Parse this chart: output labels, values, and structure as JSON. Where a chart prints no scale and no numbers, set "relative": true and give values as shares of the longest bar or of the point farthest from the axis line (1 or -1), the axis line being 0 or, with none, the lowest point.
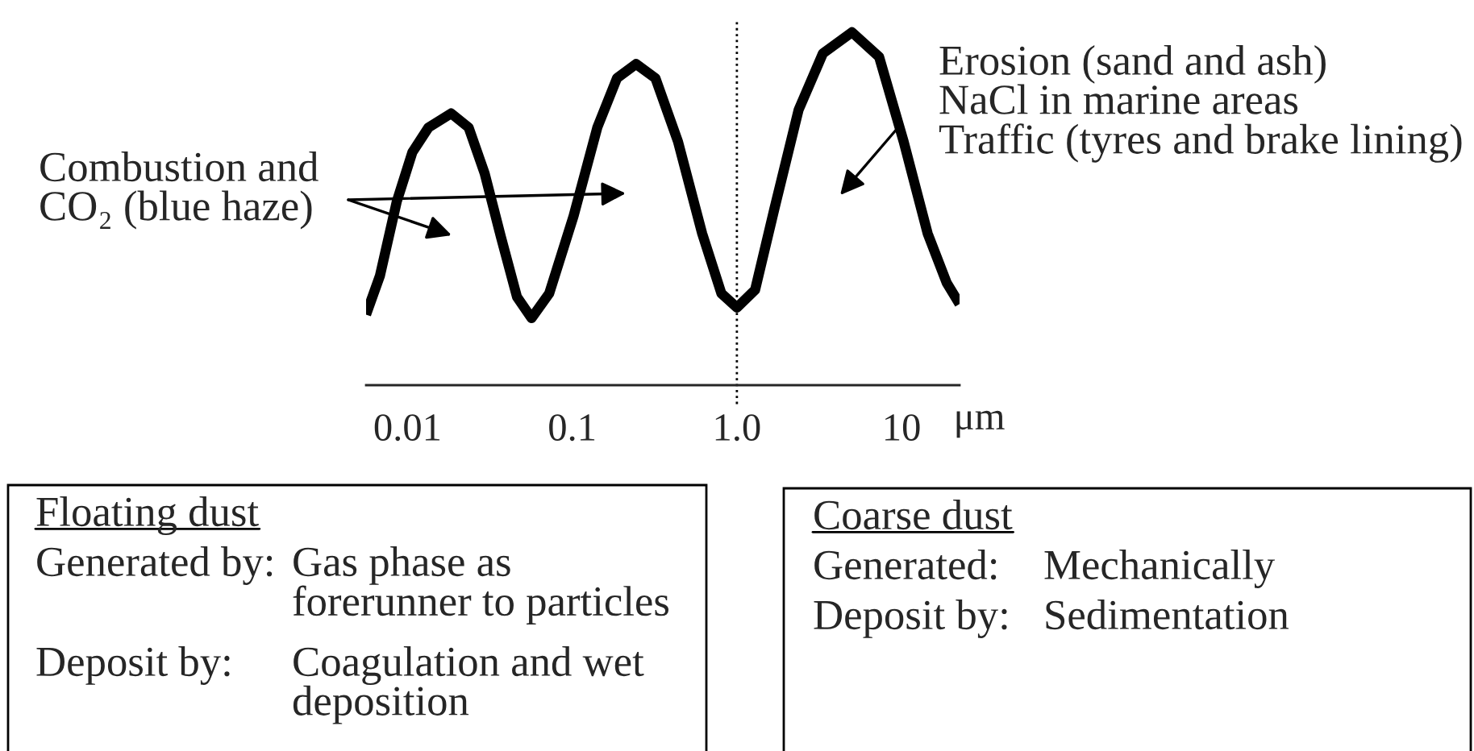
{
  "chart_data": {
    "type": "line",
    "relative": true,
    "log": "x",
    "x": [
      0.0056,
      0.0068,
      0.0086,
      0.0107,
      0.0134,
      0.0184,
      0.0235,
      0.0294,
      0.0369,
      0.0462,
      0.0566,
      0.0725,
      0.102,
      0.142,
      0.187,
      0.244,
      0.32,
      0.439,
      0.615,
      0.805,
      1.0,
      1.29,
      1.69,
      2.37,
      3.33,
      5.0,
      7.31,
      10.3,
      14.4,
      18.8,
      22.5
    ],
    "series": [
      {
        "color": "#000000",
        "values": [
          0.2,
          0.31,
          0.52,
          0.66,
          0.73,
          0.77,
          0.73,
          0.6,
          0.42,
          0.25,
          0.19,
          0.26,
          0.48,
          0.73,
          0.87,
          0.91,
          0.87,
          0.69,
          0.43,
          0.26,
          0.22,
          0.27,
          0.5,
          0.78,
          0.94,
          1,
          0.93,
          0.69,
          0.43,
          0.29,
          0.23
        ]
      }
    ],
    "xlim": [
      0.0056,
      22.5
    ],
    "xticks": [
      0.01,
      0.1,
      {
        "value": 1,
        "label": "1.0"
      },
      10
    ],
    "xlabel": "μm",
    "tick_labels": "x",
    "ref_lines": [
      {
        "axis": "x",
        "value": 1,
        "line_style": "dotted",
        "color": "#000000"
      }
    ],
    "annotations": [
      "Combustion and\nCO₂ (blue haze)",
      "Erosion (sand and ash)\nNaCl in marine areas\nTraffic (tyres and brake lining)",
      "Floating dust",
      "Generated by:",
      "Gas phase as\nforerunner to particles",
      "Deposit by:",
      "Coagulation and wet\ndeposition",
      "Coarse dust",
      "Generated:",
      "Mechanically",
      "Deposit by:",
      "Sedimentation"
    ]
  }
}
